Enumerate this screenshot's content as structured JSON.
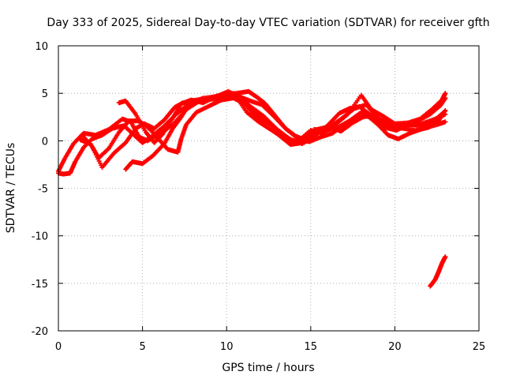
{
  "chart_data": {
    "type": "scatter",
    "title": "Day 333 of 2025, Sidereal Day-to-day VTEC variation (SDTVAR) for receiver gfth",
    "xlabel": "GPS time / hours",
    "ylabel": "SDTVAR / TECUs",
    "xlim": [
      0,
      25
    ],
    "ylim": [
      -20,
      10
    ],
    "xticks": [
      "0",
      "5",
      "10",
      "15",
      "20",
      "25"
    ],
    "yticks": [
      "10",
      "5",
      "0",
      "-5",
      "-10",
      "-15",
      "-20"
    ],
    "grid": true,
    "marker": "+",
    "color": "#ff0000",
    "series": [
      {
        "name": "track-1",
        "points": [
          [
            0,
            -3.2
          ],
          [
            0.4,
            -1.8
          ],
          [
            0.9,
            -0.3
          ],
          [
            1.5,
            0.8
          ],
          [
            2.2,
            0.6
          ],
          [
            3.0,
            1.2
          ],
          [
            3.8,
            2.3
          ],
          [
            4.3,
            2.0
          ],
          [
            4.8,
            0.4
          ],
          [
            5.3,
            0.0
          ],
          [
            6.0,
            0.7
          ],
          [
            6.8,
            1.7
          ],
          [
            7.6,
            3.3
          ],
          [
            8.4,
            4.2
          ],
          [
            9.4,
            4.6
          ],
          [
            10.2,
            4.9
          ],
          [
            10.8,
            4.4
          ],
          [
            11.5,
            3.5
          ],
          [
            12.2,
            2.6
          ],
          [
            13.0,
            1.2
          ],
          [
            13.8,
            0.1
          ],
          [
            14.5,
            -0.3
          ],
          [
            15.2,
            0.9
          ],
          [
            16.0,
            1.3
          ],
          [
            16.8,
            2.3
          ],
          [
            17.6,
            3.4
          ],
          [
            18.3,
            3.8
          ],
          [
            19.0,
            2.4
          ],
          [
            19.7,
            1.5
          ],
          [
            20.5,
            1.3
          ],
          [
            21.2,
            1.1
          ],
          [
            22.0,
            1.4
          ],
          [
            22.6,
            2.1
          ],
          [
            23.0,
            3.2
          ]
        ]
      },
      {
        "name": "track-2",
        "points": [
          [
            0,
            -3.4
          ],
          [
            0.3,
            -3.5
          ],
          [
            0.7,
            -3.4
          ],
          [
            1.0,
            -2.2
          ],
          [
            1.5,
            -0.7
          ],
          [
            2.0,
            0.2
          ],
          [
            2.6,
            0.6
          ],
          [
            3.2,
            1.3
          ],
          [
            3.9,
            1.6
          ],
          [
            4.5,
            0.6
          ],
          [
            5.0,
            -0.2
          ],
          [
            5.5,
            0.4
          ],
          [
            6.2,
            1.4
          ],
          [
            7.0,
            2.8
          ],
          [
            7.7,
            3.8
          ],
          [
            8.6,
            4.5
          ],
          [
            9.6,
            4.7
          ],
          [
            10.5,
            4.8
          ],
          [
            11.2,
            3.0
          ],
          [
            11.9,
            2.0
          ],
          [
            12.6,
            1.2
          ],
          [
            13.4,
            0.4
          ],
          [
            14.2,
            -0.1
          ],
          [
            15.0,
            1.1
          ],
          [
            15.7,
            0.8
          ],
          [
            16.4,
            1.6
          ],
          [
            17.2,
            2.8
          ],
          [
            18.0,
            4.8
          ],
          [
            18.6,
            3.3
          ],
          [
            19.3,
            2.6
          ],
          [
            20.0,
            1.8
          ],
          [
            20.8,
            1.9
          ],
          [
            21.5,
            2.3
          ],
          [
            22.2,
            3.3
          ],
          [
            22.8,
            4.3
          ],
          [
            23.0,
            5.0
          ]
        ]
      },
      {
        "name": "track-3",
        "points": [
          [
            1.4,
            0.6
          ],
          [
            2.0,
            -0.6
          ],
          [
            2.6,
            -2.8
          ],
          [
            3.3,
            -1.3
          ],
          [
            4.0,
            -0.2
          ],
          [
            4.6,
            1.3
          ],
          [
            5.1,
            1.8
          ],
          [
            5.7,
            1.3
          ],
          [
            6.3,
            2.2
          ],
          [
            6.9,
            3.5
          ],
          [
            7.4,
            4.0
          ],
          [
            8.2,
            4.3
          ],
          [
            9.0,
            4.5
          ],
          [
            9.8,
            4.9
          ],
          [
            10.6,
            5.0
          ],
          [
            11.3,
            5.2
          ],
          [
            11.8,
            4.6
          ],
          [
            12.3,
            3.9
          ],
          [
            12.9,
            2.6
          ],
          [
            13.5,
            1.3
          ],
          [
            14.1,
            0.5
          ],
          [
            14.8,
            0.0
          ],
          [
            15.4,
            1.2
          ],
          [
            16.1,
            1.5
          ],
          [
            16.8,
            1.0
          ],
          [
            17.5,
            1.9
          ],
          [
            18.2,
            2.6
          ],
          [
            18.9,
            2.4
          ],
          [
            19.5,
            2.0
          ],
          [
            20.1,
            1.3
          ],
          [
            20.8,
            1.7
          ],
          [
            21.6,
            1.8
          ],
          [
            22.4,
            2.3
          ],
          [
            23.0,
            2.8
          ]
        ]
      },
      {
        "name": "track-4",
        "points": [
          [
            3.6,
            4.0
          ],
          [
            4.0,
            4.2
          ],
          [
            4.6,
            2.8
          ],
          [
            5.2,
            0.9
          ],
          [
            5.7,
            -0.2
          ],
          [
            6.2,
            0.7
          ],
          [
            6.8,
            2.4
          ],
          [
            7.3,
            3.9
          ],
          [
            7.9,
            4.3
          ],
          [
            8.6,
            4.0
          ],
          [
            9.3,
            4.6
          ],
          [
            10.1,
            5.2
          ],
          [
            10.9,
            4.5
          ],
          [
            11.6,
            3.2
          ],
          [
            12.4,
            2.0
          ],
          [
            13.2,
            0.9
          ],
          [
            13.9,
            0.0
          ],
          [
            14.6,
            -0.2
          ],
          [
            15.3,
            0.6
          ],
          [
            16.0,
            1.6
          ],
          [
            16.7,
            2.9
          ],
          [
            17.3,
            3.4
          ],
          [
            17.9,
            3.6
          ],
          [
            18.5,
            2.8
          ],
          [
            19.1,
            2.1
          ],
          [
            19.8,
            1.5
          ],
          [
            20.5,
            1.5
          ],
          [
            21.3,
            2.0
          ],
          [
            22.1,
            2.8
          ],
          [
            22.7,
            3.7
          ],
          [
            23.0,
            4.5
          ]
        ]
      },
      {
        "name": "track-5",
        "points": [
          [
            4.0,
            -3.0
          ],
          [
            4.4,
            -2.2
          ],
          [
            5.0,
            -2.4
          ],
          [
            5.6,
            -1.6
          ],
          [
            6.3,
            -0.3
          ],
          [
            6.8,
            1.3
          ],
          [
            7.3,
            2.5
          ],
          [
            7.8,
            3.9
          ],
          [
            8.5,
            4.3
          ],
          [
            9.3,
            4.4
          ],
          [
            10.0,
            4.6
          ],
          [
            10.7,
            4.7
          ],
          [
            11.4,
            4.2
          ],
          [
            12.1,
            3.8
          ],
          [
            12.8,
            2.6
          ],
          [
            13.5,
            1.3
          ],
          [
            14.2,
            0.3
          ],
          [
            14.9,
            -0.1
          ],
          [
            15.6,
            0.4
          ],
          [
            16.3,
            0.8
          ],
          [
            17.0,
            1.7
          ],
          [
            17.7,
            2.4
          ],
          [
            18.4,
            2.6
          ],
          [
            19.0,
            1.7
          ],
          [
            19.6,
            0.6
          ],
          [
            20.2,
            0.2
          ],
          [
            20.9,
            0.8
          ],
          [
            21.7,
            1.3
          ],
          [
            22.5,
            1.7
          ],
          [
            23.0,
            2.0
          ]
        ]
      },
      {
        "name": "track-6",
        "points": [
          [
            1.3,
            0.1
          ],
          [
            1.9,
            -0.3
          ],
          [
            2.4,
            -1.8
          ],
          [
            3.0,
            -0.8
          ],
          [
            3.6,
            0.9
          ],
          [
            4.2,
            2.1
          ],
          [
            4.8,
            2.1
          ],
          [
            5.4,
            1.3
          ],
          [
            5.9,
            0.3
          ],
          [
            6.5,
            -0.9
          ],
          [
            7.1,
            -1.2
          ],
          [
            7.3,
            0.2
          ],
          [
            7.6,
            1.7
          ],
          [
            8.2,
            3.0
          ],
          [
            9.0,
            3.7
          ],
          [
            9.7,
            4.3
          ],
          [
            10.4,
            4.5
          ],
          [
            11.0,
            4.0
          ],
          [
            11.7,
            2.7
          ],
          [
            12.4,
            1.5
          ],
          [
            13.1,
            0.6
          ],
          [
            13.8,
            -0.4
          ],
          [
            14.5,
            -0.2
          ],
          [
            15.2,
            1.2
          ],
          [
            15.9,
            1.1
          ],
          [
            16.6,
            1.4
          ],
          [
            17.3,
            2.1
          ],
          [
            18.0,
            3.0
          ],
          [
            18.7,
            2.3
          ],
          [
            19.4,
            1.4
          ],
          [
            20.1,
            1.1
          ],
          [
            20.8,
            1.7
          ],
          [
            21.5,
            1.6
          ],
          [
            22.2,
            1.9
          ],
          [
            22.9,
            3.0
          ]
        ]
      },
      {
        "name": "track-7",
        "points": [
          [
            22.1,
            -15.3
          ],
          [
            22.4,
            -14.6
          ],
          [
            22.6,
            -13.8
          ],
          [
            22.8,
            -12.9
          ],
          [
            23.0,
            -12.2
          ]
        ]
      }
    ]
  }
}
